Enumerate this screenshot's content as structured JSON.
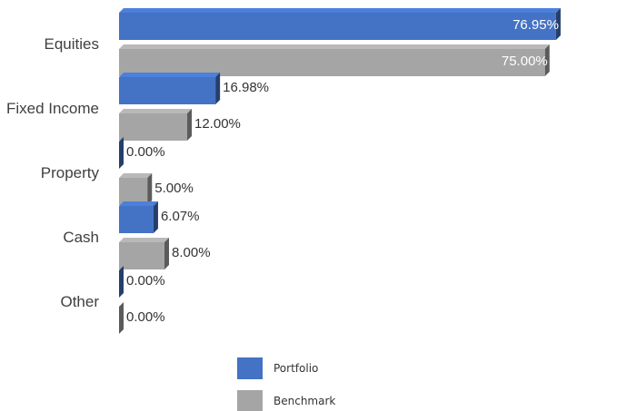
{
  "chart_data": {
    "type": "bar",
    "orientation": "horizontal",
    "title": "",
    "categories": [
      "Equities",
      "Fixed Income",
      "Property",
      "Cash",
      "Other"
    ],
    "series": [
      {
        "name": "Portfolio",
        "values": [
          76.95,
          16.98,
          0.0,
          6.07,
          0.0
        ],
        "labels": [
          "76.95%",
          "16.98%",
          "0.00%",
          "6.07%",
          "0.00%"
        ],
        "color": "#4472c4"
      },
      {
        "name": "Benchmark",
        "values": [
          75.0,
          12.0,
          5.0,
          8.0,
          0.0
        ],
        "labels": [
          "75.00%",
          "12.00%",
          "5.00%",
          "8.00%",
          "0.00%"
        ],
        "color": "#a5a5a5"
      }
    ],
    "xlim": [
      0,
      80
    ],
    "grid": false,
    "legend_position": "bottom"
  }
}
